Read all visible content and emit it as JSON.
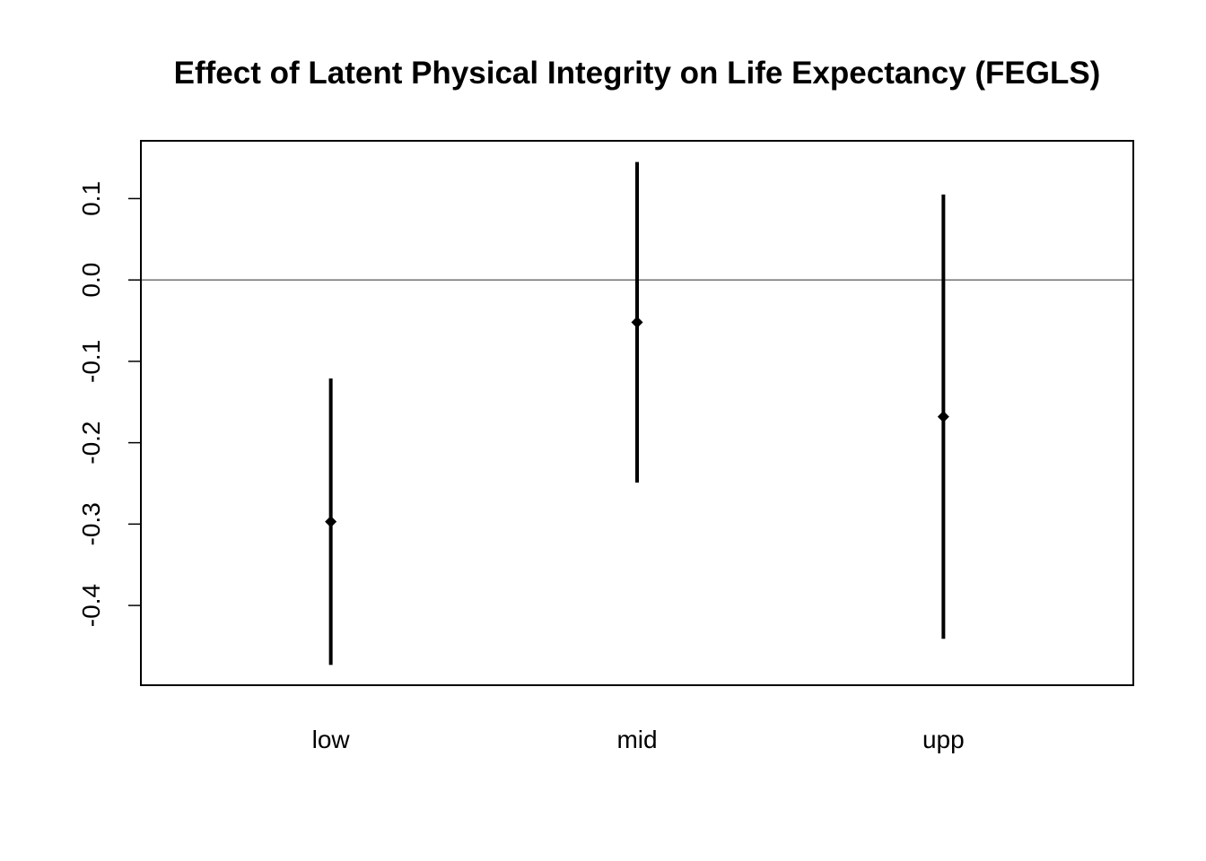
{
  "chart_data": {
    "type": "errorbar",
    "title": "Effect of Latent Physical Integrity on Life Expectancy (FEGLS)",
    "xlabel": "",
    "ylabel": "",
    "categories": [
      "low",
      "mid",
      "upp"
    ],
    "points": [
      {
        "category": "low",
        "estimate": -0.297,
        "lower": -0.473,
        "upper": -0.121
      },
      {
        "category": "mid",
        "estimate": -0.052,
        "lower": -0.249,
        "upper": 0.145
      },
      {
        "category": "upp",
        "estimate": -0.168,
        "lower": -0.441,
        "upper": 0.105
      }
    ],
    "yticks": [
      "-0.4",
      "-0.3",
      "-0.2",
      "-0.1",
      "0.0",
      "0.1"
    ],
    "ylim": [
      -0.498,
      0.171
    ],
    "reference_line": 0,
    "grid": false,
    "legend": "none",
    "colors": {
      "marks": "#000000",
      "reference_line": "#555555",
      "background": "#ffffff"
    }
  }
}
